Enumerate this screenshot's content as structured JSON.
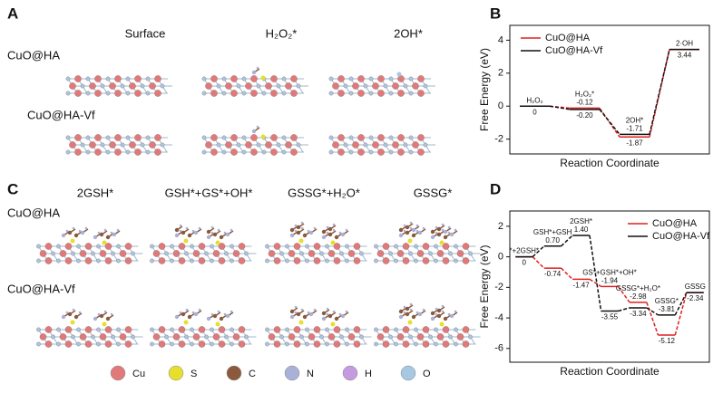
{
  "figure": {
    "A": {
      "label": "A",
      "columns": [
        "Surface",
        "H₂O₂*",
        "2OH*"
      ],
      "rows": [
        "CuO@HA",
        "CuO@HA-Vf"
      ]
    },
    "B": {
      "label": "B"
    },
    "C": {
      "label": "C",
      "columns": [
        "2GSH*",
        "GSH*+GS*+OH*",
        "GSSG*+H₂O*",
        "GSSG*"
      ],
      "rows": [
        "CuO@HA",
        "CuO@HA-Vf"
      ]
    },
    "D": {
      "label": "D"
    },
    "atom_legend": [
      {
        "name": "Cu",
        "color": "#e07a7a"
      },
      {
        "name": "S",
        "color": "#e6df2e"
      },
      {
        "name": "C",
        "color": "#8b5a3c"
      },
      {
        "name": "N",
        "color": "#a9b1d9"
      },
      {
        "name": "H",
        "color": "#c59be0"
      },
      {
        "name": "O",
        "color": "#a6c8e2"
      }
    ]
  },
  "chart_data": [
    {
      "type": "step",
      "xlabel": "Reaction Coordinate",
      "ylabel": "Free Energy (eV)",
      "categories": [
        "H₂O₂",
        "H₂O₂*",
        "2OH*",
        "2·OH"
      ],
      "ylim": [
        -2.9,
        4.9
      ],
      "yticks": [
        -2,
        0,
        2,
        4
      ],
      "legend": "upper left",
      "series": [
        {
          "name": "CuO@HA",
          "color": "#e02020",
          "values": [
            0,
            -0.12,
            -1.87,
            3.44
          ],
          "value_labels": [
            null,
            "-0.12",
            "-1.87",
            null
          ]
        },
        {
          "name": "CuO@HA-Vf",
          "color": "#111111",
          "values": [
            0,
            -0.2,
            -1.71,
            3.44
          ],
          "value_labels": [
            "0",
            "-0.20",
            "-1.71",
            "3.44"
          ]
        }
      ]
    },
    {
      "type": "step",
      "xlabel": "Reaction Coordinate",
      "ylabel": "Free Energy (eV)",
      "categories": [
        "*+2GSH*",
        "GSH*+GSH",
        "2GSH*",
        "GS*+GSH*+OH*",
        "GSSG*+H₂O*",
        "GSSG*",
        "GSSG"
      ],
      "ylim": [
        -6.9,
        3.0
      ],
      "yticks": [
        -6,
        -4,
        -2,
        0,
        2
      ],
      "legend": "upper right",
      "series": [
        {
          "name": "CuO@HA",
          "color": "#e02020",
          "values": [
            0,
            -0.74,
            -1.47,
            -1.94,
            -2.98,
            -5.12,
            -2.34
          ],
          "value_labels": [
            null,
            "-0.74",
            "-1.47",
            "-1.94",
            "-2.98",
            "-5.12",
            null
          ]
        },
        {
          "name": "CuO@HA-Vf",
          "color": "#111111",
          "values": [
            0,
            0.7,
            1.4,
            -3.55,
            -3.34,
            -3.81,
            -2.34
          ],
          "value_labels": [
            "0",
            "0.70",
            "1.40",
            "-3.55",
            "-3.34",
            "-3.81",
            "-2.34"
          ]
        }
      ]
    }
  ]
}
